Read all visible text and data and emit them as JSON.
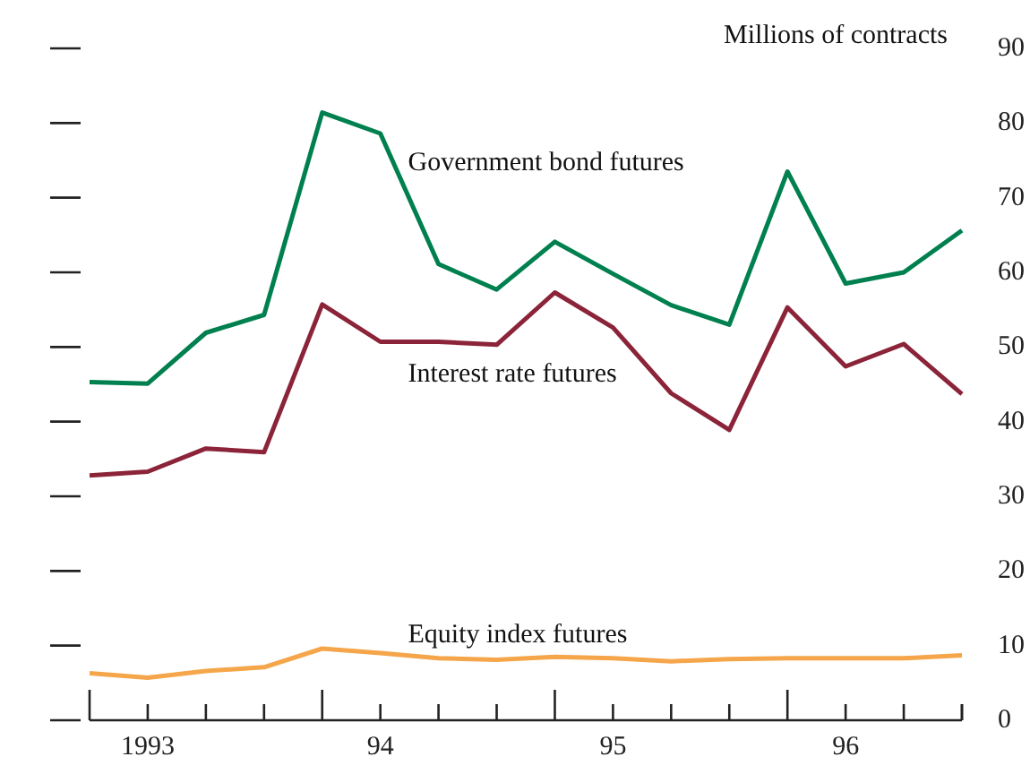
{
  "chart_data": {
    "type": "line",
    "ylabel": "Millions of contracts",
    "categories": [
      null,
      "1993",
      null,
      null,
      null,
      "94",
      null,
      null,
      null,
      "95",
      null,
      null,
      null,
      "96",
      null,
      null
    ],
    "series": [
      {
        "name": "Government bond futures",
        "color": "#00804f",
        "values": [
          45.3,
          45.1,
          51.9,
          54.3,
          81.4,
          78.6,
          61.1,
          57.7,
          64.1,
          59.8,
          55.6,
          53.0,
          73.5,
          58.5,
          60.0,
          65.6
        ]
      },
      {
        "name": "Interest rate futures",
        "color": "#8b2439",
        "values": [
          32.8,
          33.3,
          36.4,
          35.9,
          55.7,
          50.7,
          50.7,
          50.3,
          57.3,
          52.6,
          43.8,
          38.9,
          55.3,
          47.4,
          50.4,
          43.7
        ]
      },
      {
        "name": "Equity index futures",
        "color": "#f5a54a",
        "values": [
          6.3,
          5.7,
          6.6,
          7.1,
          9.6,
          9.0,
          8.3,
          8.1,
          8.5,
          8.3,
          7.9,
          8.2,
          8.3,
          8.3,
          8.3,
          8.7
        ]
      }
    ],
    "ylim": [
      0,
      90
    ],
    "yticks": [
      0,
      10,
      20,
      30,
      40,
      50,
      60,
      70,
      80,
      90
    ],
    "grid": false,
    "legend": false,
    "marker": "none",
    "line_style": "solid"
  }
}
